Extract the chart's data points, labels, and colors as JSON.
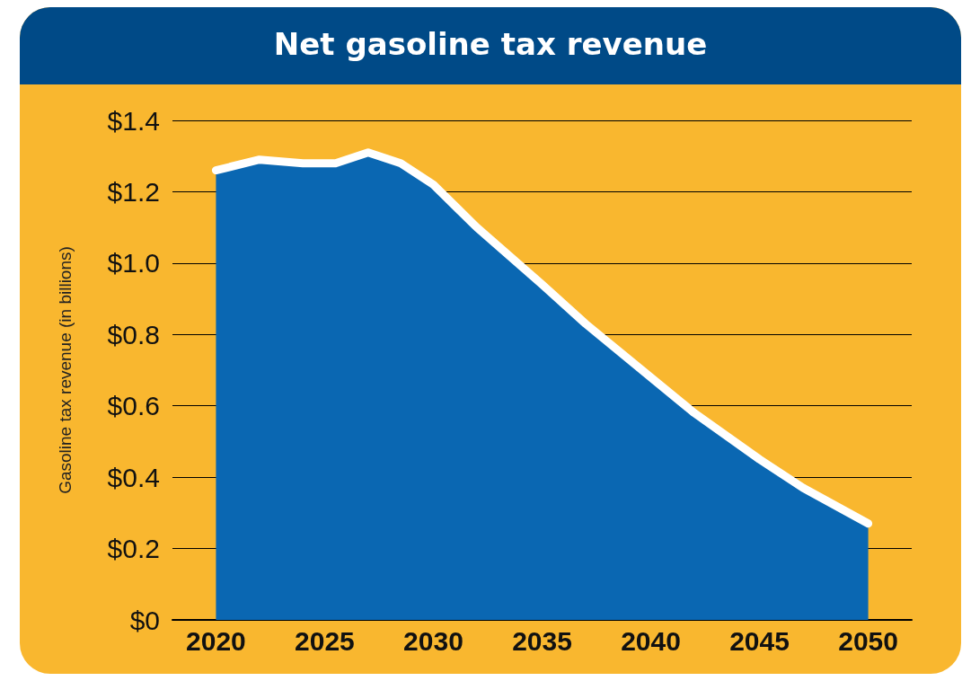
{
  "chart_data": {
    "type": "area",
    "title": "Net gasoline tax revenue",
    "ylabel": "Gasoline tax revenue (in billions)",
    "x": [
      2020,
      2022,
      2024,
      2025.5,
      2027,
      2028.5,
      2030,
      2032,
      2035,
      2037,
      2040,
      2042,
      2045,
      2047,
      2050
    ],
    "series": [
      {
        "color": "#0a67b2",
        "values": [
          1.26,
          1.29,
          1.28,
          1.28,
          1.31,
          1.28,
          1.22,
          1.1,
          0.94,
          0.83,
          0.68,
          0.58,
          0.45,
          0.37,
          0.27
        ]
      }
    ],
    "xlim": [
      2018,
      2052
    ],
    "xticks": [
      2020,
      2025,
      2030,
      2035,
      2040,
      2045,
      2050
    ],
    "ylim": [
      0,
      1.4
    ],
    "yticks": [
      {
        "value": 0,
        "label": "$0"
      },
      {
        "value": 0.2,
        "label": "$0.2"
      },
      {
        "value": 0.4,
        "label": "$0.4"
      },
      {
        "value": 0.6,
        "label": "$0.6"
      },
      {
        "value": 0.8,
        "label": "$0.8"
      },
      {
        "value": 1.0,
        "label": "$1.0"
      },
      {
        "value": 1.2,
        "label": "$1.2"
      },
      {
        "value": 1.4,
        "label": "$1.4"
      }
    ],
    "grid": "y",
    "line_style": "solid"
  }
}
